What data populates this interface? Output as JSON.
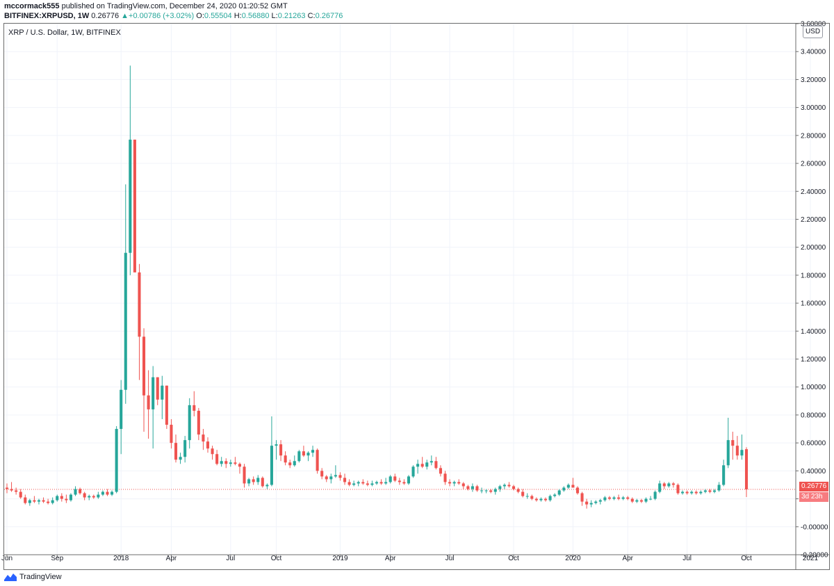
{
  "header": {
    "author": "mccormack555",
    "published": " published on TradingView.com, December 24, 2020 01:20:52 GMT",
    "symbol": "BITFINEX:XRPUSD, 1W",
    "last": "0.26776",
    "change": "+0.00786 (+3.02%)",
    "o_label": "O:",
    "o_val": "0.55504",
    "h_label": "H:",
    "h_val": "0.56880",
    "l_label": "L:",
    "l_val": "0.21263",
    "c_label": "C:",
    "c_val": "0.26776"
  },
  "legend_title": "XRP / U.S. Dollar, 1W, BITFINEX",
  "currency_button": "USD",
  "price_tag": "0.26776",
  "countdown_tag": "3d 23h",
  "footer_brand": "TradingView",
  "colors": {
    "up": "#26a69a",
    "down": "#ef5350",
    "grid": "#f0f3fa",
    "axis": "#6b6b6b"
  },
  "chart_data": {
    "type": "candlestick",
    "title": "XRP / U.S. Dollar, 1W, BITFINEX",
    "ylim": [
      -0.2,
      3.6
    ],
    "y_ticks": [
      3.6,
      3.4,
      3.2,
      3.0,
      2.8,
      2.6,
      2.4,
      2.2,
      2.0,
      1.8,
      1.6,
      1.4,
      1.2,
      1.0,
      0.8,
      0.6,
      0.4,
      0.2,
      0.0,
      -0.2
    ],
    "y_tick_labels": [
      "3.60000",
      "3.40000",
      "3.20000",
      "3.00000",
      "2.80000",
      "2.60000",
      "2.40000",
      "2.20000",
      "2.00000",
      "1.80000",
      "1.60000",
      "1.40000",
      "1.20000",
      "1.00000",
      "0.80000",
      "0.60000",
      "0.40000",
      "0.20000",
      "-0.00000",
      "-0.20000"
    ],
    "x_ticks": [
      {
        "label": "Jun",
        "index": 0
      },
      {
        "label": "Sep",
        "index": 11
      },
      {
        "label": "2018",
        "index": 25
      },
      {
        "label": "Apr",
        "index": 36
      },
      {
        "label": "Jul",
        "index": 49
      },
      {
        "label": "Oct",
        "index": 59
      },
      {
        "label": "2019",
        "index": 73
      },
      {
        "label": "Apr",
        "index": 84
      },
      {
        "label": "Jul",
        "index": 97
      },
      {
        "label": "Oct",
        "index": 111
      },
      {
        "label": "2020",
        "index": 124
      },
      {
        "label": "Apr",
        "index": 136
      },
      {
        "label": "Jul",
        "index": 149
      },
      {
        "label": "Oct",
        "index": 162
      },
      {
        "label": "2021",
        "index": 176
      }
    ],
    "last_price": 0.26776,
    "candles": [
      [
        0.28,
        0.31,
        0.24,
        0.27
      ],
      [
        0.27,
        0.32,
        0.25,
        0.26
      ],
      [
        0.26,
        0.28,
        0.23,
        0.25
      ],
      [
        0.25,
        0.27,
        0.2,
        0.21
      ],
      [
        0.21,
        0.23,
        0.16,
        0.17
      ],
      [
        0.17,
        0.2,
        0.15,
        0.19
      ],
      [
        0.19,
        0.22,
        0.17,
        0.18
      ],
      [
        0.18,
        0.2,
        0.16,
        0.19
      ],
      [
        0.19,
        0.21,
        0.17,
        0.18
      ],
      [
        0.18,
        0.2,
        0.16,
        0.17
      ],
      [
        0.17,
        0.21,
        0.16,
        0.19
      ],
      [
        0.19,
        0.23,
        0.18,
        0.22
      ],
      [
        0.22,
        0.24,
        0.18,
        0.2
      ],
      [
        0.2,
        0.23,
        0.17,
        0.19
      ],
      [
        0.19,
        0.24,
        0.18,
        0.23
      ],
      [
        0.23,
        0.29,
        0.22,
        0.27
      ],
      [
        0.27,
        0.28,
        0.23,
        0.24
      ],
      [
        0.24,
        0.25,
        0.19,
        0.21
      ],
      [
        0.21,
        0.23,
        0.19,
        0.22
      ],
      [
        0.22,
        0.23,
        0.2,
        0.21
      ],
      [
        0.21,
        0.25,
        0.2,
        0.23
      ],
      [
        0.23,
        0.26,
        0.22,
        0.25
      ],
      [
        0.25,
        0.27,
        0.22,
        0.23
      ],
      [
        0.23,
        0.26,
        0.22,
        0.25
      ],
      [
        0.25,
        0.72,
        0.24,
        0.7
      ],
      [
        0.7,
        1.05,
        0.52,
        0.98
      ],
      [
        0.98,
        2.45,
        0.88,
        1.96
      ],
      [
        1.96,
        3.3,
        1.8,
        2.77
      ],
      [
        2.77,
        2.77,
        1.85,
        1.82
      ],
      [
        1.82,
        1.88,
        1.05,
        1.36
      ],
      [
        1.36,
        1.42,
        0.68,
        0.94
      ],
      [
        0.94,
        1.12,
        0.63,
        0.84
      ],
      [
        0.84,
        1.15,
        0.56,
        1.07
      ],
      [
        1.07,
        1.07,
        0.87,
        0.91
      ],
      [
        0.91,
        1.08,
        0.77,
        1.01
      ],
      [
        1.01,
        1.01,
        0.7,
        0.73
      ],
      [
        0.73,
        0.77,
        0.56,
        0.6
      ],
      [
        0.6,
        0.66,
        0.46,
        0.48
      ],
      [
        0.48,
        0.53,
        0.45,
        0.5
      ],
      [
        0.5,
        0.65,
        0.46,
        0.62
      ],
      [
        0.62,
        0.92,
        0.56,
        0.87
      ],
      [
        0.87,
        0.97,
        0.79,
        0.83
      ],
      [
        0.83,
        0.85,
        0.62,
        0.66
      ],
      [
        0.66,
        0.7,
        0.55,
        0.61
      ],
      [
        0.61,
        0.64,
        0.53,
        0.56
      ],
      [
        0.56,
        0.58,
        0.48,
        0.52
      ],
      [
        0.52,
        0.55,
        0.44,
        0.45
      ],
      [
        0.45,
        0.5,
        0.43,
        0.47
      ],
      [
        0.47,
        0.49,
        0.42,
        0.45
      ],
      [
        0.45,
        0.48,
        0.43,
        0.46
      ],
      [
        0.46,
        0.5,
        0.44,
        0.45
      ],
      [
        0.45,
        0.46,
        0.38,
        0.43
      ],
      [
        0.43,
        0.45,
        0.28,
        0.31
      ],
      [
        0.31,
        0.35,
        0.29,
        0.34
      ],
      [
        0.34,
        0.36,
        0.3,
        0.32
      ],
      [
        0.32,
        0.37,
        0.3,
        0.35
      ],
      [
        0.35,
        0.36,
        0.28,
        0.29
      ],
      [
        0.29,
        0.31,
        0.27,
        0.3
      ],
      [
        0.3,
        0.79,
        0.29,
        0.58
      ],
      [
        0.58,
        0.62,
        0.48,
        0.59
      ],
      [
        0.59,
        0.62,
        0.47,
        0.51
      ],
      [
        0.51,
        0.54,
        0.44,
        0.46
      ],
      [
        0.46,
        0.48,
        0.42,
        0.44
      ],
      [
        0.44,
        0.51,
        0.43,
        0.47
      ],
      [
        0.47,
        0.55,
        0.46,
        0.54
      ],
      [
        0.54,
        0.58,
        0.5,
        0.51
      ],
      [
        0.51,
        0.54,
        0.47,
        0.53
      ],
      [
        0.53,
        0.58,
        0.5,
        0.55
      ],
      [
        0.55,
        0.56,
        0.38,
        0.4
      ],
      [
        0.4,
        0.42,
        0.34,
        0.36
      ],
      [
        0.36,
        0.37,
        0.32,
        0.34
      ],
      [
        0.34,
        0.38,
        0.31,
        0.36
      ],
      [
        0.36,
        0.44,
        0.35,
        0.37
      ],
      [
        0.37,
        0.39,
        0.33,
        0.35
      ],
      [
        0.35,
        0.38,
        0.3,
        0.32
      ],
      [
        0.32,
        0.34,
        0.29,
        0.3
      ],
      [
        0.3,
        0.33,
        0.29,
        0.31
      ],
      [
        0.31,
        0.33,
        0.29,
        0.32
      ],
      [
        0.32,
        0.34,
        0.3,
        0.31
      ],
      [
        0.31,
        0.33,
        0.29,
        0.3
      ],
      [
        0.3,
        0.33,
        0.29,
        0.31
      ],
      [
        0.31,
        0.33,
        0.3,
        0.32
      ],
      [
        0.32,
        0.34,
        0.3,
        0.31
      ],
      [
        0.31,
        0.35,
        0.3,
        0.32
      ],
      [
        0.32,
        0.37,
        0.31,
        0.36
      ],
      [
        0.36,
        0.38,
        0.32,
        0.33
      ],
      [
        0.33,
        0.35,
        0.3,
        0.32
      ],
      [
        0.32,
        0.34,
        0.3,
        0.31
      ],
      [
        0.31,
        0.37,
        0.3,
        0.36
      ],
      [
        0.36,
        0.44,
        0.35,
        0.43
      ],
      [
        0.43,
        0.48,
        0.38,
        0.45
      ],
      [
        0.45,
        0.5,
        0.42,
        0.43
      ],
      [
        0.43,
        0.48,
        0.41,
        0.46
      ],
      [
        0.46,
        0.51,
        0.44,
        0.47
      ],
      [
        0.47,
        0.5,
        0.41,
        0.42
      ],
      [
        0.42,
        0.44,
        0.36,
        0.38
      ],
      [
        0.38,
        0.4,
        0.3,
        0.32
      ],
      [
        0.32,
        0.34,
        0.29,
        0.31
      ],
      [
        0.31,
        0.33,
        0.29,
        0.32
      ],
      [
        0.32,
        0.34,
        0.3,
        0.31
      ],
      [
        0.31,
        0.32,
        0.27,
        0.29
      ],
      [
        0.29,
        0.3,
        0.26,
        0.27
      ],
      [
        0.27,
        0.31,
        0.25,
        0.29
      ],
      [
        0.29,
        0.3,
        0.25,
        0.26
      ],
      [
        0.26,
        0.28,
        0.24,
        0.26
      ],
      [
        0.26,
        0.27,
        0.24,
        0.26
      ],
      [
        0.26,
        0.27,
        0.24,
        0.25
      ],
      [
        0.25,
        0.28,
        0.23,
        0.27
      ],
      [
        0.27,
        0.3,
        0.25,
        0.29
      ],
      [
        0.29,
        0.31,
        0.27,
        0.3
      ],
      [
        0.3,
        0.32,
        0.28,
        0.29
      ],
      [
        0.29,
        0.3,
        0.26,
        0.27
      ],
      [
        0.27,
        0.28,
        0.24,
        0.25
      ],
      [
        0.25,
        0.27,
        0.21,
        0.22
      ],
      [
        0.22,
        0.24,
        0.2,
        0.22
      ],
      [
        0.22,
        0.23,
        0.19,
        0.2
      ],
      [
        0.2,
        0.21,
        0.18,
        0.19
      ],
      [
        0.19,
        0.21,
        0.18,
        0.2
      ],
      [
        0.2,
        0.21,
        0.18,
        0.19
      ],
      [
        0.19,
        0.23,
        0.18,
        0.22
      ],
      [
        0.22,
        0.24,
        0.21,
        0.23
      ],
      [
        0.23,
        0.27,
        0.22,
        0.26
      ],
      [
        0.26,
        0.29,
        0.25,
        0.28
      ],
      [
        0.28,
        0.31,
        0.27,
        0.3
      ],
      [
        0.3,
        0.35,
        0.29,
        0.28
      ],
      [
        0.28,
        0.29,
        0.23,
        0.24
      ],
      [
        0.24,
        0.25,
        0.15,
        0.18
      ],
      [
        0.18,
        0.2,
        0.13,
        0.16
      ],
      [
        0.16,
        0.19,
        0.14,
        0.17
      ],
      [
        0.17,
        0.19,
        0.16,
        0.18
      ],
      [
        0.18,
        0.2,
        0.16,
        0.19
      ],
      [
        0.19,
        0.22,
        0.18,
        0.21
      ],
      [
        0.21,
        0.22,
        0.19,
        0.2
      ],
      [
        0.2,
        0.22,
        0.19,
        0.21
      ],
      [
        0.21,
        0.23,
        0.19,
        0.2
      ],
      [
        0.2,
        0.22,
        0.19,
        0.21
      ],
      [
        0.21,
        0.22,
        0.19,
        0.2
      ],
      [
        0.2,
        0.21,
        0.17,
        0.18
      ],
      [
        0.18,
        0.2,
        0.17,
        0.19
      ],
      [
        0.19,
        0.2,
        0.17,
        0.18
      ],
      [
        0.18,
        0.21,
        0.17,
        0.2
      ],
      [
        0.2,
        0.22,
        0.19,
        0.2
      ],
      [
        0.2,
        0.26,
        0.19,
        0.25
      ],
      [
        0.25,
        0.33,
        0.24,
        0.31
      ],
      [
        0.31,
        0.32,
        0.27,
        0.29
      ],
      [
        0.29,
        0.32,
        0.28,
        0.31
      ],
      [
        0.31,
        0.32,
        0.28,
        0.3
      ],
      [
        0.3,
        0.31,
        0.23,
        0.24
      ],
      [
        0.24,
        0.26,
        0.23,
        0.25
      ],
      [
        0.25,
        0.26,
        0.23,
        0.24
      ],
      [
        0.24,
        0.26,
        0.23,
        0.25
      ],
      [
        0.25,
        0.26,
        0.23,
        0.24
      ],
      [
        0.24,
        0.26,
        0.23,
        0.25
      ],
      [
        0.25,
        0.27,
        0.24,
        0.26
      ],
      [
        0.26,
        0.27,
        0.24,
        0.25
      ],
      [
        0.25,
        0.27,
        0.24,
        0.26
      ],
      [
        0.26,
        0.32,
        0.25,
        0.3
      ],
      [
        0.3,
        0.48,
        0.29,
        0.44
      ],
      [
        0.44,
        0.78,
        0.42,
        0.62
      ],
      [
        0.62,
        0.68,
        0.48,
        0.58
      ],
      [
        0.58,
        0.65,
        0.48,
        0.51
      ],
      [
        0.51,
        0.66,
        0.48,
        0.55
      ],
      [
        0.55504,
        0.5688,
        0.21263,
        0.26776
      ]
    ]
  }
}
